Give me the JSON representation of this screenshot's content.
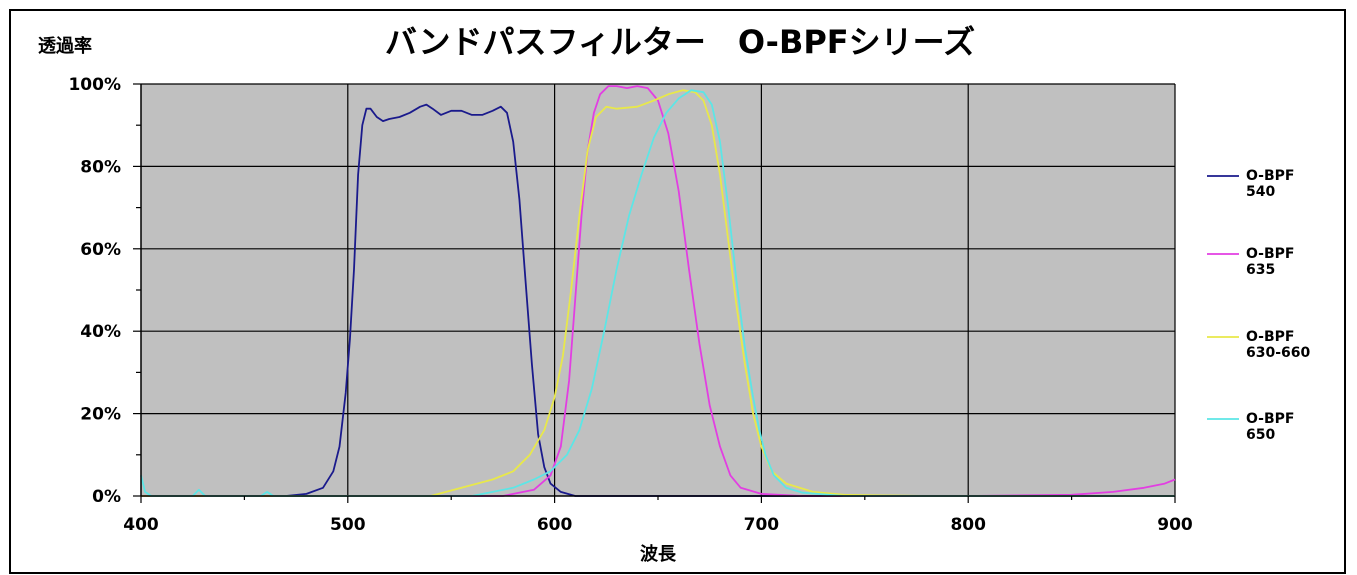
{
  "chart_data": {
    "type": "line",
    "title": "バンドパスフィルター　O-BPFシリーズ",
    "xlabel": "波長",
    "ylabel": "透過率",
    "xlim": [
      400,
      900
    ],
    "ylim": [
      0,
      100
    ],
    "x_ticks": [
      "400",
      "500",
      "600",
      "700",
      "800",
      "900"
    ],
    "y_ticks": [
      "0%",
      "20%",
      "40%",
      "60%",
      "80%",
      "100%"
    ],
    "grid": true,
    "legend_position": "right",
    "colors": {
      "plot_background": "#c0c0c0",
      "grid": "#000000"
    },
    "series": [
      {
        "name_line1": "O-BPF",
        "name_line2": "540",
        "color": "#1a1a8c",
        "points": [
          [
            400,
            0
          ],
          [
            470,
            0
          ],
          [
            480,
            0.5
          ],
          [
            488,
            2
          ],
          [
            493,
            6
          ],
          [
            496,
            12
          ],
          [
            499,
            25
          ],
          [
            501,
            38
          ],
          [
            503,
            55
          ],
          [
            505,
            78
          ],
          [
            507,
            90
          ],
          [
            509,
            94
          ],
          [
            511,
            94
          ],
          [
            514,
            92
          ],
          [
            517,
            91
          ],
          [
            520,
            91.5
          ],
          [
            525,
            92
          ],
          [
            530,
            93
          ],
          [
            535,
            94.5
          ],
          [
            538,
            95
          ],
          [
            541,
            94
          ],
          [
            545,
            92.5
          ],
          [
            550,
            93.5
          ],
          [
            555,
            93.5
          ],
          [
            560,
            92.5
          ],
          [
            565,
            92.5
          ],
          [
            570,
            93.5
          ],
          [
            574,
            94.5
          ],
          [
            577,
            93
          ],
          [
            580,
            86
          ],
          [
            583,
            72
          ],
          [
            586,
            52
          ],
          [
            589,
            32
          ],
          [
            592,
            15
          ],
          [
            595,
            7
          ],
          [
            598,
            3
          ],
          [
            603,
            1
          ],
          [
            610,
            0
          ],
          [
            900,
            0
          ]
        ]
      },
      {
        "name_line1": "O-BPF",
        "name_line2": "635",
        "color": "#e23ee2",
        "points": [
          [
            400,
            0
          ],
          [
            575,
            0
          ],
          [
            590,
            1.5
          ],
          [
            598,
            5
          ],
          [
            603,
            12
          ],
          [
            607,
            28
          ],
          [
            610,
            48
          ],
          [
            613,
            68
          ],
          [
            616,
            84
          ],
          [
            619,
            93
          ],
          [
            622,
            97.5
          ],
          [
            626,
            99.5
          ],
          [
            630,
            99.5
          ],
          [
            635,
            99
          ],
          [
            640,
            99.5
          ],
          [
            645,
            99
          ],
          [
            650,
            96
          ],
          [
            655,
            88
          ],
          [
            660,
            74
          ],
          [
            665,
            55
          ],
          [
            670,
            37
          ],
          [
            675,
            22
          ],
          [
            680,
            12
          ],
          [
            685,
            5
          ],
          [
            690,
            2
          ],
          [
            700,
            0.5
          ],
          [
            720,
            0
          ],
          [
            800,
            0
          ],
          [
            850,
            0.3
          ],
          [
            870,
            1
          ],
          [
            885,
            2
          ],
          [
            895,
            3
          ],
          [
            900,
            4
          ]
        ]
      },
      {
        "name_line1": "O-BPF",
        "name_line2": "630-660",
        "color": "#e8e84a",
        "points": [
          [
            400,
            0
          ],
          [
            540,
            0
          ],
          [
            555,
            2
          ],
          [
            570,
            4
          ],
          [
            580,
            6
          ],
          [
            588,
            10
          ],
          [
            595,
            16
          ],
          [
            600,
            24
          ],
          [
            604,
            34
          ],
          [
            608,
            50
          ],
          [
            612,
            68
          ],
          [
            616,
            84
          ],
          [
            620,
            92
          ],
          [
            625,
            94.5
          ],
          [
            630,
            94
          ],
          [
            640,
            94.5
          ],
          [
            648,
            96
          ],
          [
            655,
            97.5
          ],
          [
            662,
            98.5
          ],
          [
            668,
            98
          ],
          [
            672,
            96
          ],
          [
            676,
            90
          ],
          [
            680,
            78
          ],
          [
            684,
            62
          ],
          [
            688,
            46
          ],
          [
            692,
            32
          ],
          [
            696,
            20
          ],
          [
            700,
            12
          ],
          [
            705,
            6
          ],
          [
            712,
            3
          ],
          [
            725,
            1
          ],
          [
            740,
            0.3
          ],
          [
            780,
            0
          ],
          [
            900,
            0
          ]
        ]
      },
      {
        "name_line1": "O-BPF",
        "name_line2": "650",
        "color": "#5ce6e6",
        "points": [
          [
            400,
            5
          ],
          [
            402,
            1
          ],
          [
            405,
            0
          ],
          [
            425,
            0
          ],
          [
            428,
            1.5
          ],
          [
            431,
            0
          ],
          [
            458,
            0
          ],
          [
            461,
            1
          ],
          [
            464,
            0
          ],
          [
            560,
            0
          ],
          [
            580,
            2
          ],
          [
            590,
            4
          ],
          [
            598,
            6
          ],
          [
            606,
            10
          ],
          [
            612,
            16
          ],
          [
            618,
            26
          ],
          [
            624,
            40
          ],
          [
            630,
            55
          ],
          [
            636,
            68
          ],
          [
            642,
            78
          ],
          [
            648,
            87
          ],
          [
            654,
            93
          ],
          [
            660,
            96.5
          ],
          [
            666,
            98.5
          ],
          [
            672,
            98
          ],
          [
            676,
            95
          ],
          [
            680,
            86
          ],
          [
            684,
            70
          ],
          [
            688,
            52
          ],
          [
            692,
            36
          ],
          [
            696,
            24
          ],
          [
            699,
            16
          ],
          [
            702,
            10
          ],
          [
            706,
            5
          ],
          [
            712,
            2
          ],
          [
            720,
            0.8
          ],
          [
            740,
            0
          ],
          [
            900,
            0
          ]
        ]
      }
    ]
  }
}
